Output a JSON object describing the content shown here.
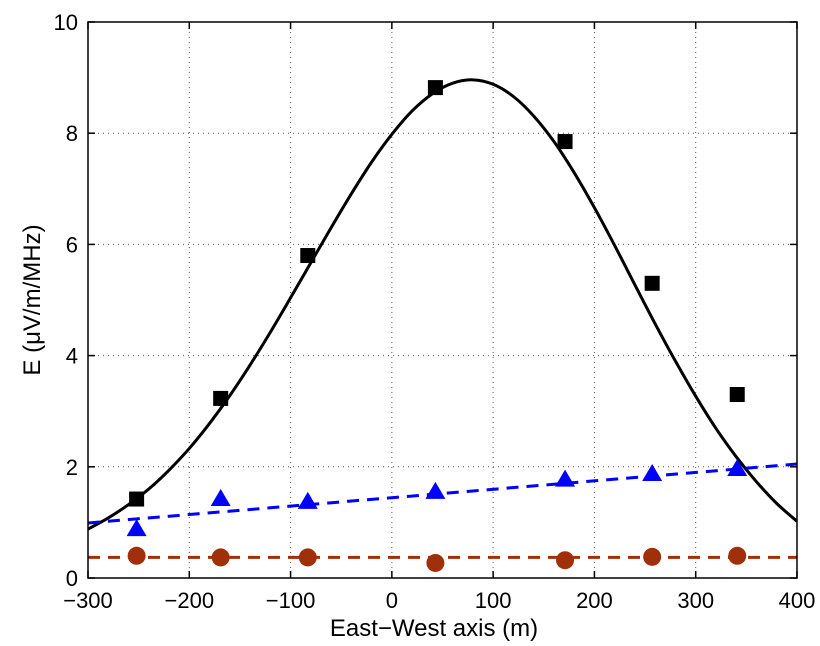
{
  "chart_data": {
    "type": "scatter",
    "xlabel": "East−West axis (m)",
    "ylabel": "E (μV/m/MHz)",
    "xlim": [
      -300,
      400
    ],
    "ylim": [
      0,
      10
    ],
    "xticks": [
      -300,
      -200,
      -100,
      0,
      100,
      200,
      300,
      400
    ],
    "xtick_labels": [
      "−300",
      "−200",
      "−100",
      "0",
      "100",
      "200",
      "300",
      "400"
    ],
    "yticks": [
      0,
      2,
      4,
      6,
      8,
      10
    ],
    "ytick_labels": [
      "0",
      "2",
      "4",
      "6",
      "8",
      "10"
    ],
    "grid": true,
    "legend": "none",
    "series": [
      {
        "marker": "square",
        "color": "#000000",
        "x": [
          -252,
          -169,
          -83,
          43,
          171,
          257,
          341
        ],
        "y": [
          1.42,
          3.23,
          5.8,
          8.82,
          7.85,
          5.3,
          3.3
        ],
        "fit": {
          "type": "gaussian-like",
          "line_style": "solid",
          "color": "#000000"
        }
      },
      {
        "marker": "triangle",
        "color": "#0000ff",
        "x": [
          -252,
          -169,
          -83,
          43,
          171,
          257,
          341
        ],
        "y": [
          0.88,
          1.42,
          1.37,
          1.55,
          1.77,
          1.87,
          1.96
        ],
        "fit": {
          "type": "linear",
          "line_style": "dashed",
          "color": "#0000ff",
          "x": [
            -300,
            400
          ],
          "y": [
            0.99,
            2.05
          ]
        }
      },
      {
        "marker": "circle",
        "color": "#a0300a",
        "x": [
          -252,
          -169,
          -83,
          43,
          171,
          257,
          341
        ],
        "y": [
          0.4,
          0.37,
          0.37,
          0.27,
          0.32,
          0.38,
          0.4
        ],
        "fit": {
          "type": "constant",
          "line_style": "dashed",
          "color": "#a0300a",
          "x": [
            -300,
            400
          ],
          "y": [
            0.37,
            0.37
          ]
        }
      }
    ],
    "curve_samples": {
      "x": [
        -300,
        -280,
        -260,
        -240,
        -220,
        -200,
        -180,
        -160,
        -140,
        -120,
        -100,
        -80,
        -60,
        -40,
        -20,
        0,
        20,
        40,
        60,
        80,
        100,
        120,
        140,
        160,
        180,
        200,
        220,
        240,
        260,
        280,
        300,
        320,
        340,
        360,
        380,
        400
      ],
      "y": [
        0.88,
        1.08,
        1.32,
        1.6,
        1.94,
        2.33,
        2.78,
        3.28,
        3.83,
        4.42,
        5.04,
        5.67,
        6.3,
        6.91,
        7.48,
        7.98,
        8.4,
        8.71,
        8.9,
        8.96,
        8.88,
        8.66,
        8.31,
        7.85,
        7.29,
        6.66,
        5.98,
        5.27,
        4.57,
        3.9,
        3.27,
        2.69,
        2.18,
        1.73,
        1.34,
        1.02
      ]
    }
  }
}
